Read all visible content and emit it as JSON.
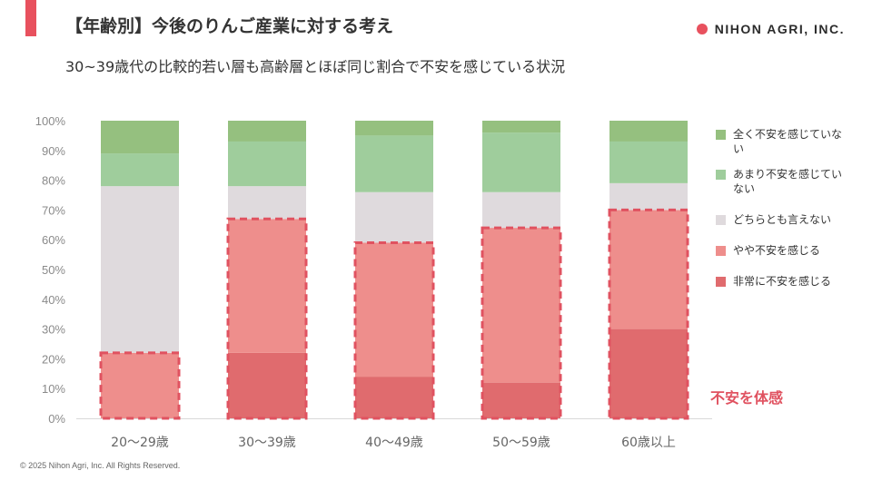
{
  "header": {
    "title": "【年齢別】今後のりんご産業に対する考え",
    "subtitle": "30~39歳代の比較的若い層も高齢層とほぼ同じ割合で不安を感じている状況",
    "brand": "NIHON AGRI, INC.",
    "accent_color": "#e8515e"
  },
  "callout": {
    "label": "不安を体感",
    "color": "#e05260"
  },
  "footer": {
    "copyright": "© 2025 Nihon Agri, Inc. All Rights Reserved."
  },
  "chart_data": {
    "type": "bar",
    "stacked": true,
    "normalized": true,
    "categories": [
      "20〜29歳",
      "30〜39歳",
      "40〜49歳",
      "50〜59歳",
      "60歳以上"
    ],
    "y_ticks": [
      "0%",
      "10%",
      "20%",
      "30%",
      "40%",
      "50%",
      "60%",
      "70%",
      "80%",
      "90%",
      "100%"
    ],
    "ylim": [
      0,
      100
    ],
    "grid": false,
    "legend_position": "right",
    "series": [
      {
        "name": "非常に不安を感じる",
        "color": "#e06b6e",
        "values": [
          0,
          22,
          14,
          12,
          30
        ]
      },
      {
        "name": "やや不安を感じる",
        "color": "#ee8e8c",
        "values": [
          22,
          45,
          45,
          52,
          40
        ]
      },
      {
        "name": "どちらとも言えない",
        "color": "#dfdadd",
        "values": [
          56,
          11,
          17,
          12,
          9
        ]
      },
      {
        "name": "あまり不安を感じていない",
        "color": "#9fcd9c",
        "values": [
          11,
          15,
          19,
          20,
          14
        ]
      },
      {
        "name": "全く不安を感じていない",
        "color": "#95c07f",
        "values": [
          11,
          7,
          5,
          4,
          7
        ]
      }
    ],
    "highlight": {
      "label": "不安を体感",
      "series_included": [
        "非常に不安を感じる",
        "やや不安を感じる"
      ],
      "values": [
        22,
        67,
        59,
        64,
        70
      ]
    },
    "legend_order": [
      "全く不安を感じていない",
      "あまり不安を感じていない",
      "どちらとも言えない",
      "やや不安を感じる",
      "非常に不安を感じる"
    ]
  }
}
